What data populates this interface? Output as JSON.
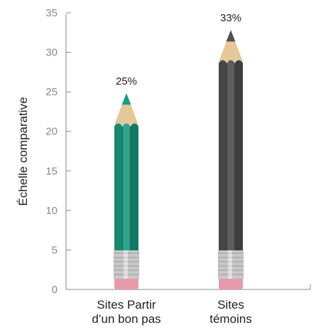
{
  "chart_data": {
    "type": "bar",
    "style": "pencil",
    "ylabel": "Échelle comparative",
    "ylim": [
      0,
      35
    ],
    "yticks": [
      0,
      5,
      10,
      15,
      20,
      25,
      30,
      35
    ],
    "categories": [
      [
        "Sites Partir",
        "d’un bon pas"
      ],
      [
        "Sites",
        "témoins"
      ]
    ],
    "values": [
      21,
      29
    ],
    "tip_values": [
      25,
      33
    ],
    "data_labels": [
      "25%",
      "33%"
    ],
    "colors": {
      "bar_1": "#1a9b80",
      "bar_2": "#505050",
      "wood": "#e6c79a",
      "eraser": "#e69aac",
      "ferrule": "#c8c8c8",
      "axis": "#8a8a8a"
    }
  }
}
